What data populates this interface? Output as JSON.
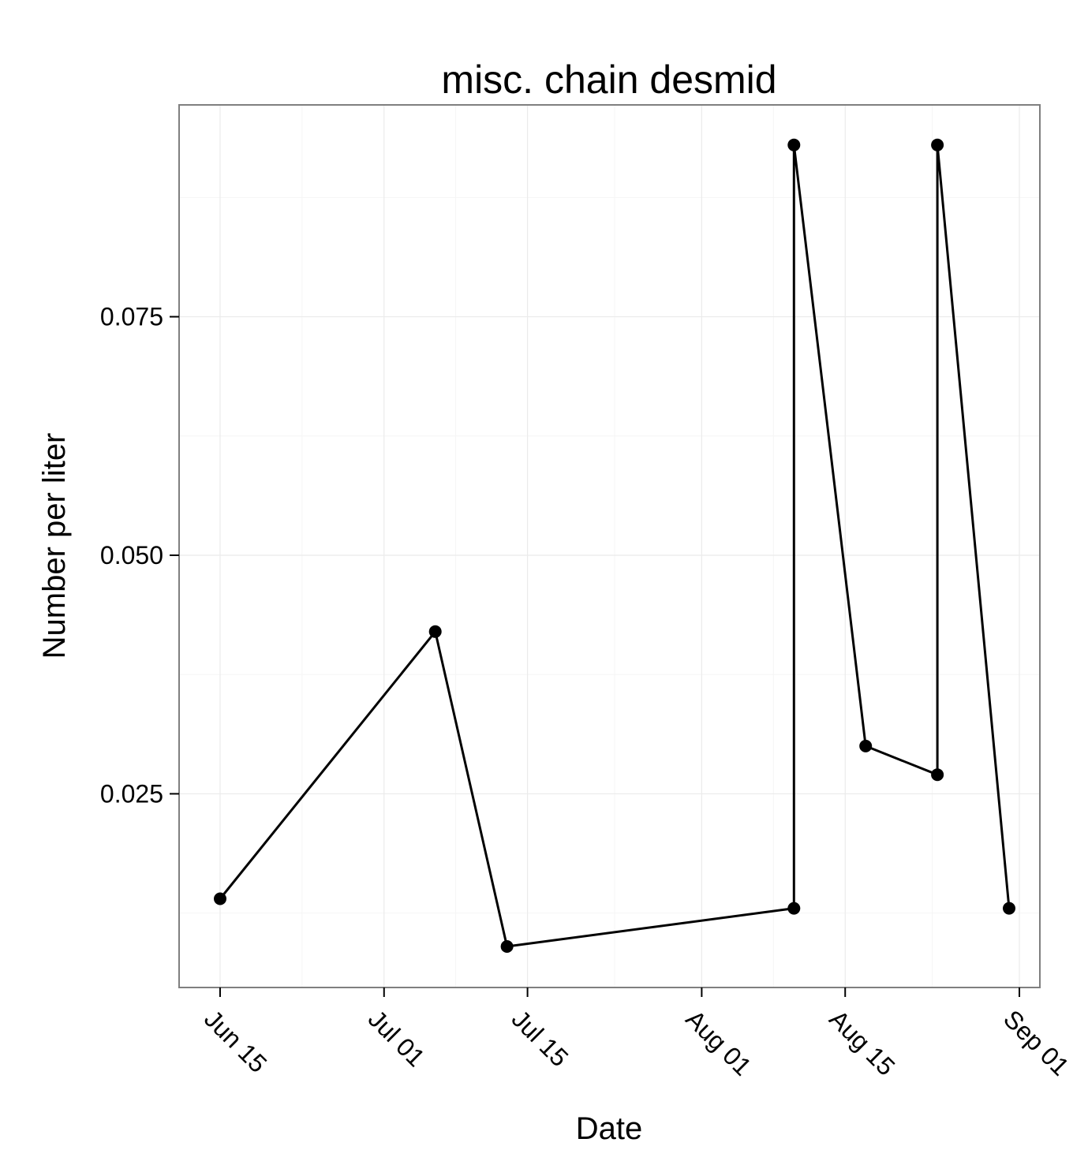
{
  "chart_data": {
    "type": "line",
    "title": "misc. chain desmid",
    "xlabel": "Date",
    "ylabel": "Number per liter",
    "x_axis": {
      "type": "date",
      "ticks": [
        "2010-06-15",
        "2010-07-01",
        "2010-07-15",
        "2010-08-01",
        "2010-08-15",
        "2010-09-01"
      ],
      "tick_labels": [
        "Jun 15",
        "Jul 01",
        "Jul 15",
        "Aug 01",
        "Aug 15",
        "Sep 01"
      ],
      "tick_label_rotation": "45 degrees clockwise"
    },
    "y_axis": {
      "ticks": [
        0.025,
        0.05,
        0.075
      ],
      "tick_labels": [
        "0.025",
        "0.050",
        "0.075"
      ]
    },
    "xlim": [
      "2010-06-11",
      "2010-09-03"
    ],
    "ylim": [
      0.0047,
      0.0972
    ],
    "grid": true,
    "series": [
      {
        "color": "#000000",
        "marker": "circle",
        "x": [
          "2010-06-15",
          "2010-07-06",
          "2010-07-13",
          "2010-08-10",
          "2010-08-10",
          "2010-08-17",
          "2010-08-24",
          "2010-08-24",
          "2010-08-31"
        ],
        "y": [
          0.014,
          0.042,
          0.009,
          0.013,
          0.093,
          0.03,
          0.027,
          0.093,
          0.013
        ]
      }
    ],
    "colors": {
      "panel_background": "#ffffff",
      "panel_border": "#7f7f7f",
      "grid_major": "#ebebeb",
      "grid_minor": "#f5f5f5",
      "line": "#000000"
    }
  }
}
